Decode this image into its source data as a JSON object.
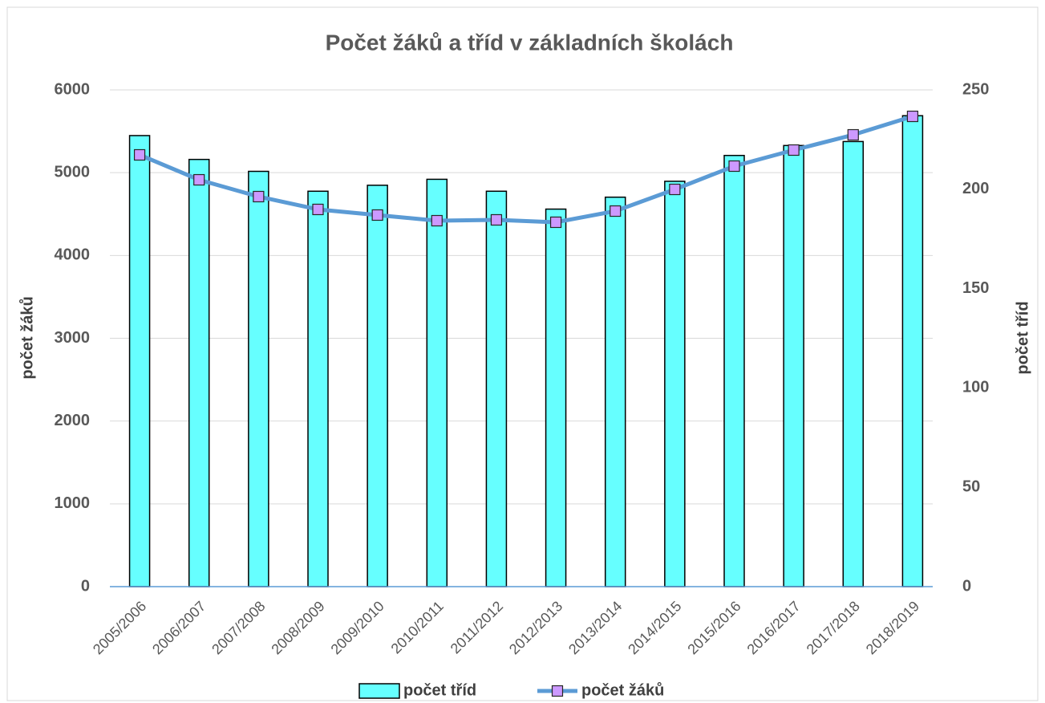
{
  "chart_data": {
    "type": "bar_line",
    "title": "Počet žáků a tříd v základních školách",
    "y_label": "počet žáků",
    "y2_label": "počet tříd",
    "categories": [
      "2005/2006",
      "2006/2007",
      "2007/2008",
      "2008/2009",
      "2009/2010",
      "2010/2011",
      "2011/2012",
      "2012/2013",
      "2013/2014",
      "2014/2015",
      "2015/2016",
      "2016/2017",
      "2017/2018",
      "2018/2019"
    ],
    "series": [
      {
        "name": "počet tříd",
        "type": "bar",
        "axis": "y2",
        "color": "#66ffff",
        "values": [
          227,
          215,
          209,
          199,
          202,
          205,
          199,
          190,
          196,
          204,
          217,
          222,
          224,
          237
        ]
      },
      {
        "name": "počet žáků",
        "type": "line",
        "axis": "y",
        "color": "#5b9bd5",
        "marker_color": "#cc99ff",
        "values": [
          5215,
          4914,
          4711,
          4556,
          4488,
          4420,
          4430,
          4401,
          4536,
          4798,
          5079,
          5273,
          5457,
          5680
        ]
      }
    ],
    "ylim": [
      0,
      6000
    ],
    "yticks": [
      0,
      1000,
      2000,
      3000,
      4000,
      5000,
      6000
    ],
    "y2lim": [
      0,
      250
    ],
    "y2ticks": [
      0,
      50,
      100,
      150,
      200,
      250
    ],
    "grid": true,
    "legend": "bottom"
  }
}
